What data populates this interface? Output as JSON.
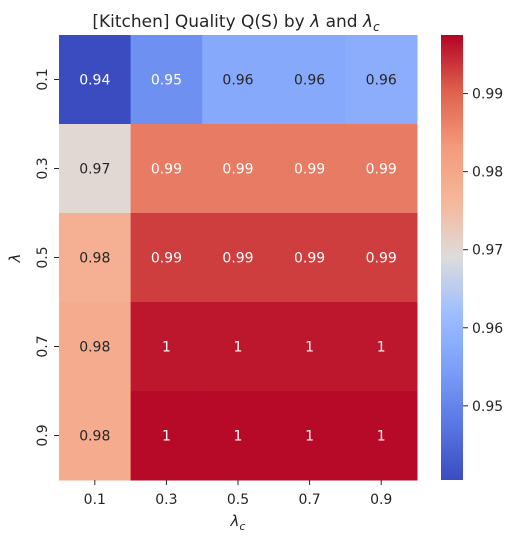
{
  "chart_data": {
    "type": "heatmap",
    "title_prefix": "[Kitchen] Quality Q(S) by ",
    "title_sym1": "λ",
    "title_mid": " and ",
    "title_sym2": "λ",
    "title_sym2_sub": "c",
    "xlabel": "λ",
    "xlabel_sub": "c",
    "ylabel": "λ",
    "x_categories": [
      "0.1",
      "0.3",
      "0.5",
      "0.7",
      "0.9"
    ],
    "y_categories": [
      "0.1",
      "0.3",
      "0.5",
      "0.7",
      "0.9"
    ],
    "values": [
      [
        0.94,
        0.952,
        0.957,
        0.957,
        0.958
      ],
      [
        0.97,
        0.987,
        0.987,
        0.987,
        0.987
      ],
      [
        0.978,
        0.993,
        0.993,
        0.993,
        0.993
      ],
      [
        0.979,
        0.996,
        0.996,
        0.996,
        0.996
      ],
      [
        0.979,
        0.997,
        0.997,
        0.997,
        0.997
      ]
    ],
    "labels": [
      [
        "0.94",
        "0.95",
        "0.96",
        "0.96",
        "0.96"
      ],
      [
        "0.97",
        "0.99",
        "0.99",
        "0.99",
        "0.99"
      ],
      [
        "0.98",
        "0.99",
        "0.99",
        "0.99",
        "0.99"
      ],
      [
        "0.98",
        "1",
        "1",
        "1",
        "1"
      ],
      [
        "0.98",
        "1",
        "1",
        "1",
        "1"
      ]
    ],
    "colormap": "coolwarm",
    "vmin": 0.9405,
    "vmax": 0.9975,
    "colorbar_ticks": [
      "0.95",
      "0.96",
      "0.97",
      "0.98",
      "0.99"
    ],
    "colorbar_tick_values": [
      0.95,
      0.96,
      0.97,
      0.98,
      0.99
    ]
  }
}
